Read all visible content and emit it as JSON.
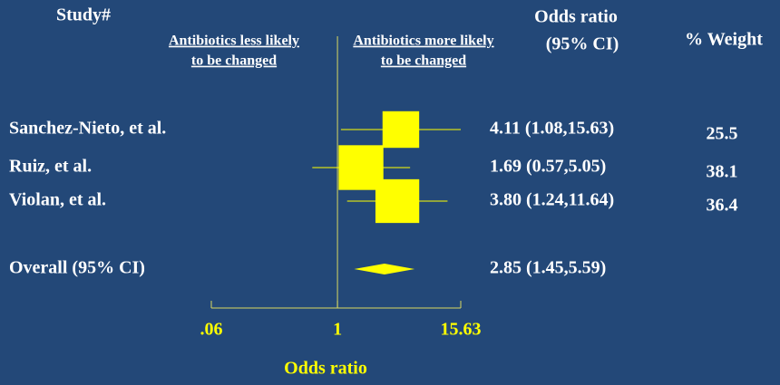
{
  "chart_data": {
    "type": "forest",
    "study_header": "Study#",
    "left_label": [
      "Antibiotics less likely",
      "to be changed"
    ],
    "right_label": [
      "Antibiotics more likely",
      "to be changed"
    ],
    "ci_header": [
      "Odds ratio",
      "(95% CI)"
    ],
    "weight_header": "% Weight",
    "xlabel": "Odds ratio",
    "xscale": "log",
    "xlim": [
      0.06,
      15.63
    ],
    "xticks": [
      {
        "value": 0.06,
        "label": ".06"
      },
      1,
      15.63
    ],
    "color": "#ffff00",
    "studies": [
      "Sanchez-Nieto, et al.",
      "Ruiz, et al.",
      "Violan, et al."
    ],
    "values": [
      4.11,
      1.69,
      3.8
    ],
    "lower": [
      1.08,
      0.57,
      1.24
    ],
    "upper": [
      15.63,
      5.05,
      11.64
    ],
    "value_labels": [
      "4.11 (1.08,15.63)",
      "1.69 (0.57,5.05)",
      "3.80 (1.24,11.64)"
    ],
    "weights": [
      25.5,
      38.1,
      36.4
    ],
    "overall": {
      "name": "Overall (95% CI)",
      "value": 2.85,
      "lower": 1.45,
      "upper": 5.59,
      "value_label": "2.85 (1.45,5.59)"
    }
  }
}
